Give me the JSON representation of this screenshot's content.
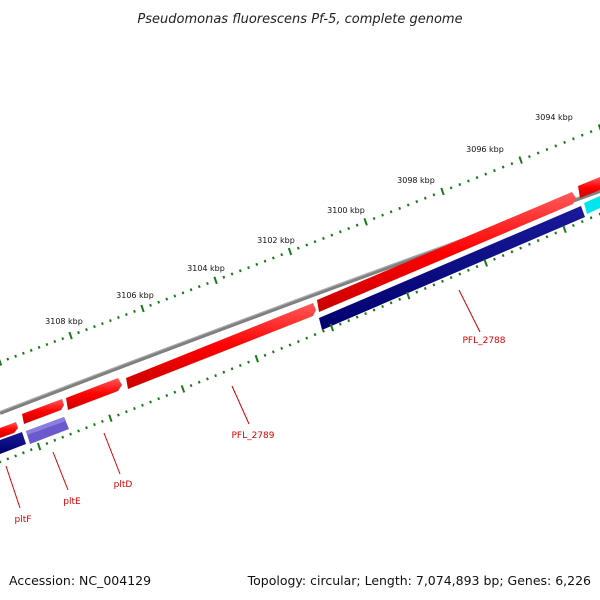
{
  "map": {
    "title": "Pseudomonas fluorescens Pf-5, complete genome",
    "accession": "Accession: NC_004129",
    "summary": "Topology: circular; Length: 7,074,893 bp; Genes: 6,226",
    "kbp_ticks": [
      "3094 kbp",
      "3096 kbp",
      "3098 kbp",
      "3100 kbp",
      "3102 kbp",
      "3104 kbp",
      "3106 kbp",
      "3108 kbp"
    ],
    "gene_labels": [
      "PFL_2788",
      "PFL_2789",
      "pltD",
      "pltE",
      "pltF"
    ],
    "colors": {
      "backbone": "#808080",
      "forward_cds": "#ff0000",
      "reverse_cds": "#000080",
      "highlight_cds": "#6a5acd",
      "cyan_cds": "#00e5ee",
      "tick": "#1a7a1a",
      "label": "#d40000"
    }
  }
}
